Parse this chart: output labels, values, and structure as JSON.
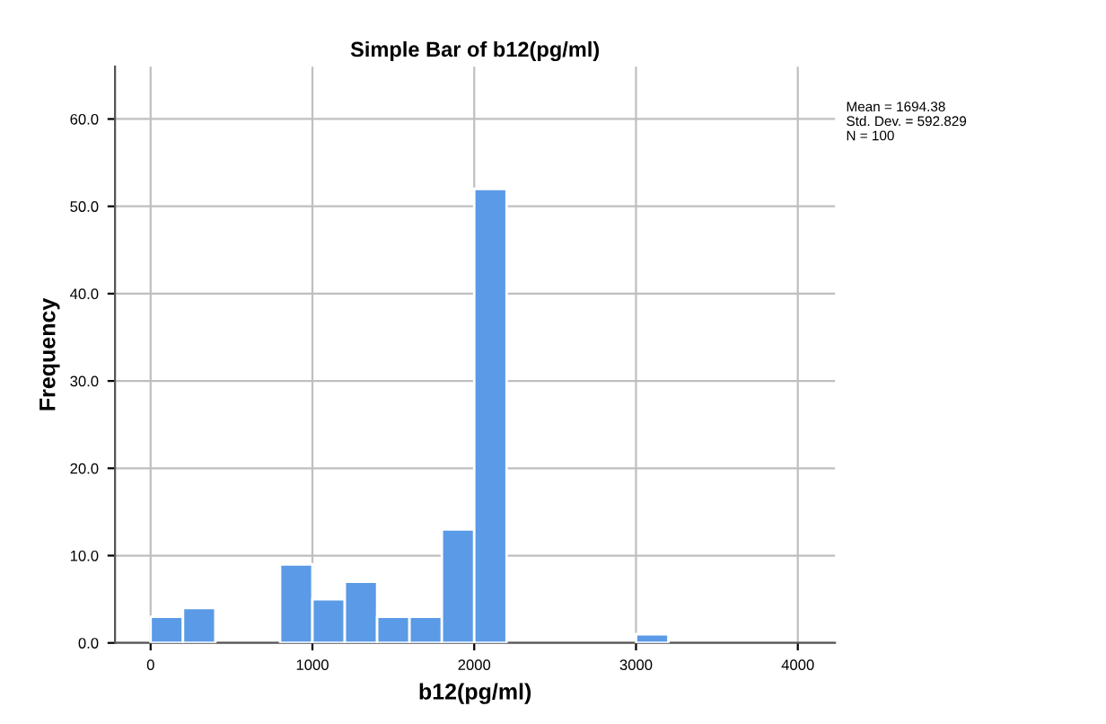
{
  "chart_data": {
    "type": "histogram",
    "title": "Simple Bar of b12(pg/ml)",
    "xlabel": "b12(pg/ml)",
    "ylabel": "Frequency",
    "bins": [
      0,
      200,
      400,
      600,
      800,
      1000,
      1200,
      1400,
      1600,
      1800,
      2000,
      2200,
      2400,
      2600,
      2800,
      3000,
      3200
    ],
    "values": [
      3,
      4,
      0,
      0,
      9,
      5,
      7,
      3,
      3,
      13,
      52,
      0,
      0,
      0,
      0,
      1
    ],
    "color": "#5b9ae6",
    "xlim": [
      -220,
      4230
    ],
    "xticks": [
      0,
      1000,
      2000,
      3000,
      4000
    ],
    "ylim": [
      0,
      66
    ],
    "yticks": [
      {
        "value": 0,
        "label": "0.0"
      },
      {
        "value": 10,
        "label": "10.0"
      },
      {
        "value": 20,
        "label": "20.0"
      },
      {
        "value": 30,
        "label": "30.0"
      },
      {
        "value": 40,
        "label": "40.0"
      },
      {
        "value": 50,
        "label": "50.0"
      },
      {
        "value": 60,
        "label": "60.0"
      }
    ],
    "grid": true,
    "annotations": [
      "Mean = 1694.38",
      "Std. Dev. = 592.829",
      "N = 100"
    ]
  }
}
